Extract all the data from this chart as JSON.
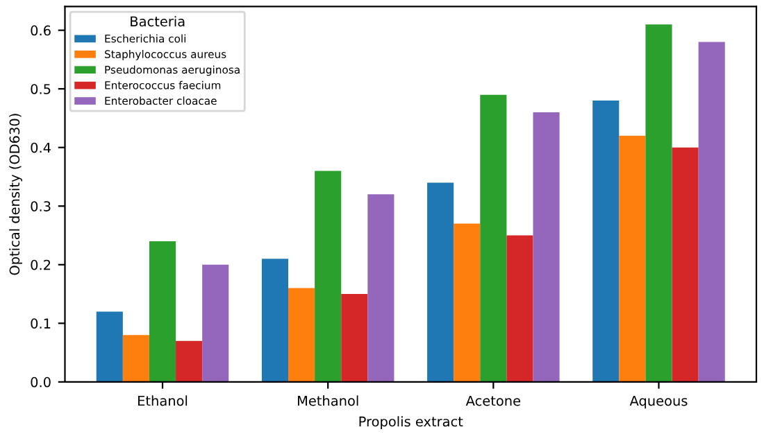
{
  "chart_data": {
    "type": "bar",
    "xlabel": "Propolis extract",
    "ylabel": "Optical density (OD630)",
    "legend_title": "Bacteria",
    "legend": "top left",
    "categories": [
      "Ethanol",
      "Methanol",
      "Acetone",
      "Aqueous"
    ],
    "series": [
      {
        "name": "Escherichia coli",
        "color": "#1f77b4",
        "values": [
          0.12,
          0.21,
          0.34,
          0.48
        ]
      },
      {
        "name": "Staphylococcus aureus",
        "color": "#ff7f0e",
        "values": [
          0.08,
          0.16,
          0.27,
          0.42
        ]
      },
      {
        "name": "Pseudomonas aeruginosa",
        "color": "#2ca02c",
        "values": [
          0.24,
          0.36,
          0.49,
          0.61
        ]
      },
      {
        "name": "Enterococcus faecium",
        "color": "#d62728",
        "values": [
          0.07,
          0.15,
          0.25,
          0.4
        ]
      },
      {
        "name": "Enterobacter cloacae",
        "color": "#9467bd",
        "values": [
          0.2,
          0.32,
          0.46,
          0.58
        ]
      }
    ],
    "ylim": [
      0,
      0.6405
    ],
    "yticks": [
      {
        "value": 0,
        "label": "0.0"
      },
      0.1,
      0.2,
      0.3,
      0.4,
      0.5,
      0.6
    ],
    "grid": false
  }
}
